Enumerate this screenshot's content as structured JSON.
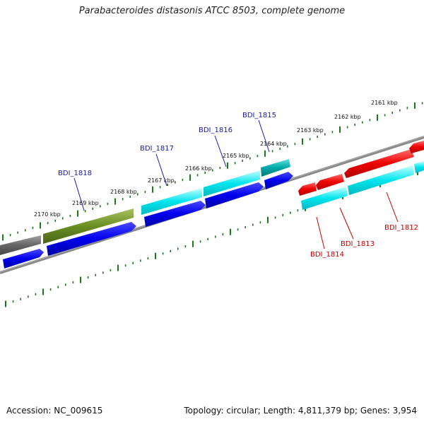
{
  "title": "Parabacteroides distasonis ATCC 8503, complete genome",
  "footer": {
    "accession": "Accession: NC_009615",
    "stats": "Topology: circular; Length: 4,811,379 bp; Genes: 3,954"
  },
  "scale_labels": [
    "2161 kbp",
    "2162 kbp",
    "2163 kbp",
    "2164 kbp",
    "2165 kbp",
    "2166 kbp",
    "2167 kbp",
    "2168 kbp",
    "2169 kbp",
    "2170 kbp"
  ],
  "gene_labels": [
    {
      "name": "BDI_1815",
      "color": "#1a1aa6"
    },
    {
      "name": "BDI_1816",
      "color": "#1a1aa6"
    },
    {
      "name": "BDI_1817",
      "color": "#1a1aa6"
    },
    {
      "name": "BDI_1818",
      "color": "#1a1aa6"
    },
    {
      "name": "BDI_1812",
      "color": "#c40000"
    },
    {
      "name": "BDI_1813",
      "color": "#c40000"
    },
    {
      "name": "BDI_1814",
      "color": "#c40000"
    }
  ],
  "colors": {
    "backbone": "#888888",
    "ticks": "#1a7a1a",
    "cds": "#0000ee",
    "cds_forward_highlight": "#00e5ee",
    "cds_reverse": "#ee0000",
    "rna": "#6b8e23",
    "other": "#666666",
    "teal": "#00a8a8"
  }
}
